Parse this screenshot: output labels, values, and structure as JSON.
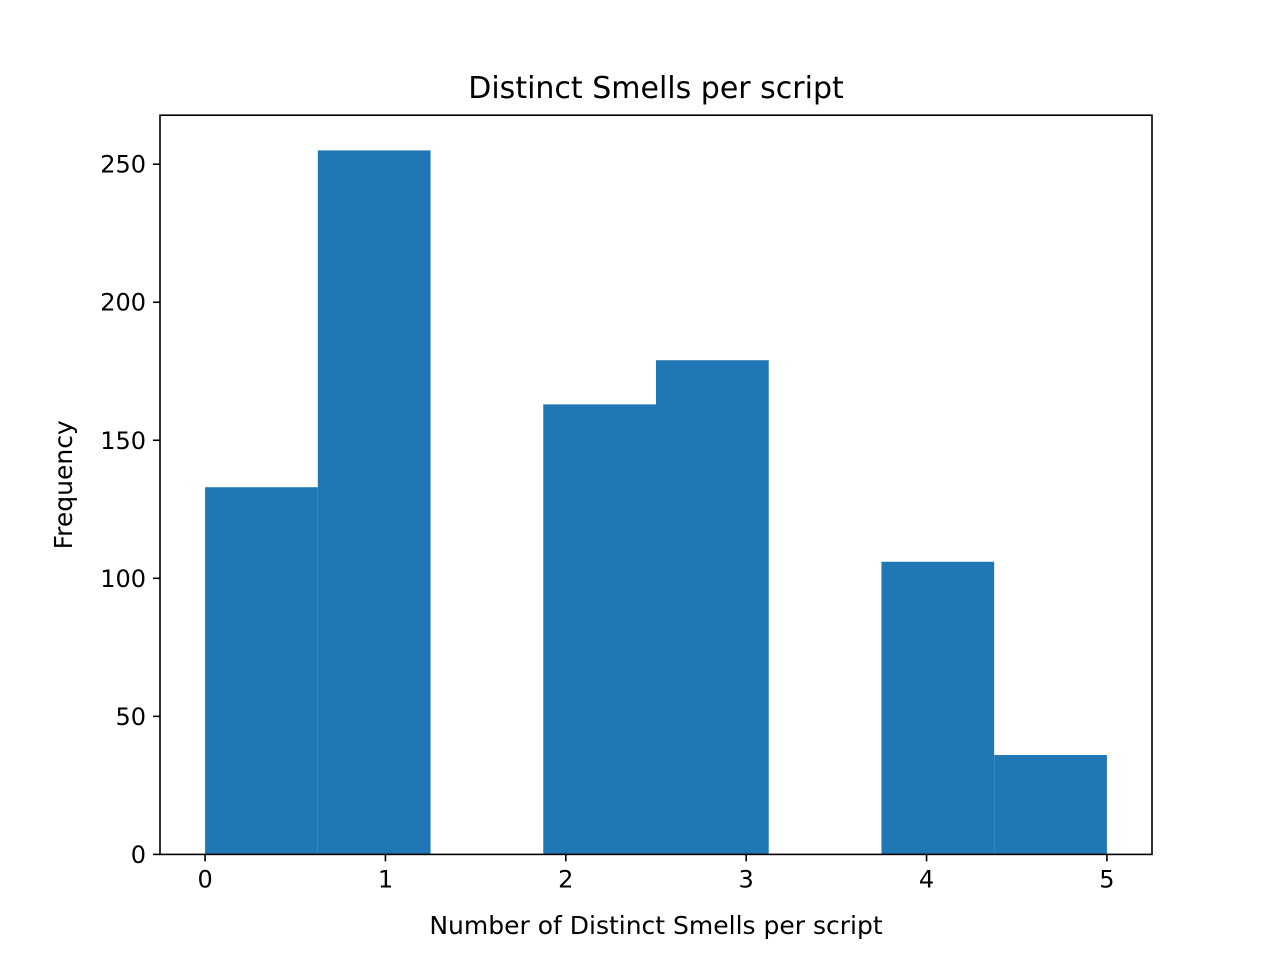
{
  "chart_data": {
    "type": "bar",
    "subtype": "histogram",
    "title": "Distinct Smells per script",
    "xlabel": "Number of Distinct Smells per script",
    "ylabel": "Frequency",
    "xlim": [
      -0.25,
      5.25
    ],
    "ylim": [
      0,
      267.75
    ],
    "x_ticks": [
      0,
      1,
      2,
      3,
      4,
      5
    ],
    "y_ticks": [
      0,
      50,
      100,
      150,
      200,
      250
    ],
    "grid": false,
    "legend": "none",
    "bar_color": "#1f77b4",
    "bins": [
      {
        "x0": 0.0,
        "x1": 0.625,
        "value": 133
      },
      {
        "x0": 0.625,
        "x1": 1.25,
        "value": 255
      },
      {
        "x0": 1.25,
        "x1": 1.875,
        "value": 0
      },
      {
        "x0": 1.875,
        "x1": 2.5,
        "value": 163
      },
      {
        "x0": 2.5,
        "x1": 3.125,
        "value": 179
      },
      {
        "x0": 3.125,
        "x1": 3.75,
        "value": 0
      },
      {
        "x0": 3.75,
        "x1": 4.375,
        "value": 106
      },
      {
        "x0": 4.375,
        "x1": 5.0,
        "value": 36
      }
    ]
  }
}
